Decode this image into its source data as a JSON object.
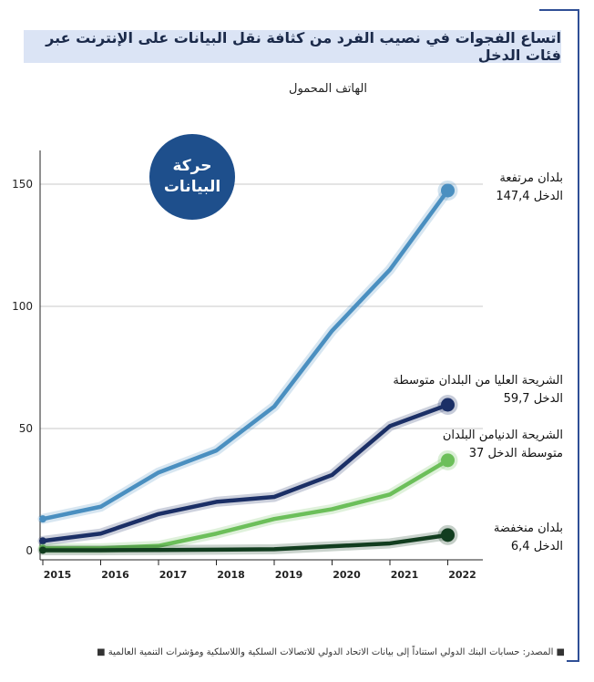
{
  "title": "اتساع الفجوات في نصيب الفرد من كثافة نقل البيانات على الإنترنت عبر فئات الدخل",
  "subtitle": "الهاتف المحمول",
  "badge": "حركة\nالبيانات",
  "footer": "■ المصدر: حسابات البنك الدولي استناداً إلى بيانات الاتحاد الدولي للاتصالات السلكية واللاسلكية ومؤشرات التنمية العالمية ■",
  "labels": {
    "high": [
      "بلدان مرتفعة",
      "الدخل 147,4"
    ],
    "upper_middle": [
      "الشريحة العليا  من البلدان متوسطة",
      "الدخل 59,7"
    ],
    "lower_middle": [
      "الشريحة الدنيامن البلدان",
      "متوسطة الدخل 37"
    ],
    "low": [
      "بلدان منخفضة",
      "الدخل 6,4"
    ]
  },
  "colors": {
    "high": "#4a8fc0",
    "upper_middle": "#1b2f66",
    "lower_middle": "#6cbf5a",
    "low": "#123d1f",
    "grid": "#c8c8c8",
    "axis": "#222222"
  },
  "chart_data": {
    "type": "line",
    "x": [
      "2015",
      "2016",
      "2017",
      "2018",
      "2019",
      "2020",
      "2021",
      "2022"
    ],
    "ylim": [
      0,
      160
    ],
    "yticks": [
      0,
      50,
      100,
      150
    ],
    "grid": "horizontal",
    "series": [
      {
        "key": "high",
        "values": [
          13,
          18,
          32,
          41,
          59,
          90,
          115,
          147.4
        ]
      },
      {
        "key": "upper_middle",
        "values": [
          4,
          7,
          15,
          20,
          22,
          31,
          51,
          59.7
        ]
      },
      {
        "key": "lower_middle",
        "values": [
          1,
          1,
          2,
          7,
          13,
          17,
          23,
          37
        ]
      },
      {
        "key": "low",
        "values": [
          0.2,
          0.2,
          0.3,
          0.4,
          0.6,
          1.8,
          3,
          6.4
        ]
      }
    ]
  }
}
